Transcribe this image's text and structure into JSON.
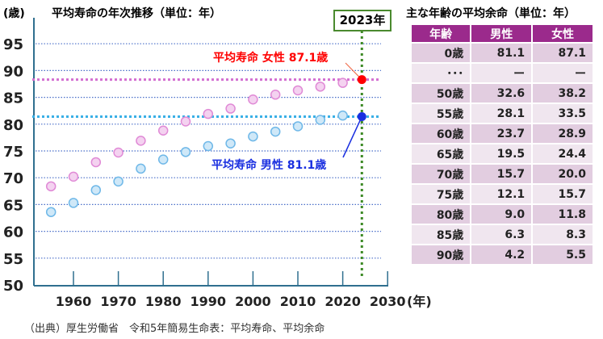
{
  "chart_data": {
    "type": "scatter",
    "title": "平均寿命の年次推移（単位：年）",
    "ylabel": "(歳)",
    "xlabel": "(年)",
    "ylim": [
      50,
      95
    ],
    "yticks": [
      "50",
      "55",
      "60",
      "65",
      "70",
      "75",
      "80",
      "85",
      "90",
      "95"
    ],
    "xticks": [
      "1960",
      "1970",
      "1980",
      "1990",
      "2000",
      "2010",
      "2020",
      "2030"
    ],
    "grid": true,
    "series": [
      {
        "name": "女性",
        "color": "#e08ad6",
        "x": [
          1955,
          1960,
          1965,
          1970,
          1975,
          1980,
          1985,
          1990,
          1995,
          2000,
          2005,
          2010,
          2015,
          2020
        ],
        "y": [
          68.4,
          70.2,
          72.9,
          74.7,
          76.9,
          78.8,
          80.5,
          81.9,
          82.9,
          84.6,
          85.5,
          86.3,
          87.0,
          87.7
        ]
      },
      {
        "name": "男性",
        "color": "#6fb8e8",
        "x": [
          1955,
          1960,
          1965,
          1970,
          1975,
          1980,
          1985,
          1990,
          1995,
          2000,
          2005,
          2010,
          2015,
          2020
        ],
        "y": [
          63.6,
          65.3,
          67.7,
          69.3,
          71.7,
          73.4,
          74.8,
          75.9,
          76.4,
          77.7,
          78.6,
          79.6,
          80.8,
          81.6
        ]
      }
    ],
    "highlight": {
      "year": 2023,
      "label": "2023年",
      "female": {
        "value": 87.1,
        "label": "平均寿命 女性 87.1歳",
        "color": "#ff0000"
      },
      "male": {
        "value": 81.1,
        "label": "平均寿命 男性 81.1歳",
        "color": "#1a2fe0"
      }
    }
  },
  "table": {
    "title": "主な年齢の平均余命（単位：年）",
    "headers": [
      "年齢",
      "男性",
      "女性"
    ],
    "rows": [
      [
        "0歳",
        "81.1",
        "87.1"
      ],
      [
        "･･･",
        "ー",
        "ー"
      ],
      [
        "50歳",
        "32.6",
        "38.2"
      ],
      [
        "55歳",
        "28.1",
        "33.5"
      ],
      [
        "60歳",
        "23.7",
        "28.9"
      ],
      [
        "65歳",
        "19.5",
        "24.4"
      ],
      [
        "70歳",
        "15.7",
        "20.0"
      ],
      [
        "75歳",
        "12.1",
        "15.7"
      ],
      [
        "80歳",
        "9.0",
        "11.8"
      ],
      [
        "85歳",
        "6.3",
        "8.3"
      ],
      [
        "90歳",
        "4.2",
        "5.5"
      ]
    ]
  },
  "source": "（出典）厚生労働省　令和5年簡易生命表：平均寿命、平均余命"
}
